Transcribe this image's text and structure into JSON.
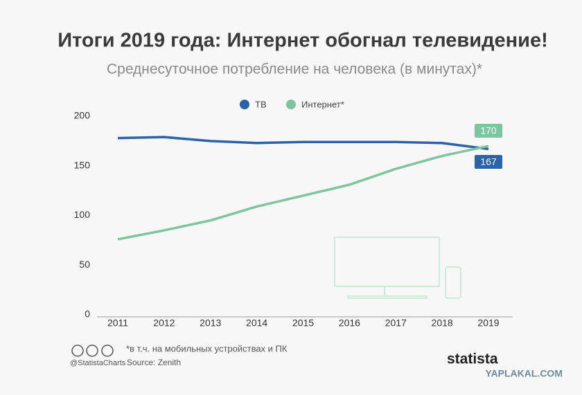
{
  "chart_data": {
    "type": "line",
    "title": "Итоги 2019 года: Интернет обогнал телевидение!",
    "subtitle": "Среднесуточное потребление на человека (в минутах)*",
    "categories": [
      "2011",
      "2012",
      "2013",
      "2014",
      "2015",
      "2016",
      "2017",
      "2018",
      "2019"
    ],
    "series": [
      {
        "name": "ТВ",
        "color": "#2a63a8",
        "values": [
          178,
          179,
          175,
          173,
          174,
          174,
          174,
          173,
          167
        ]
      },
      {
        "name": "Интернет*",
        "color": "#7cc5a0",
        "values": [
          76,
          85,
          95,
          109,
          120,
          131,
          147,
          160,
          170
        ]
      }
    ],
    "ylim": [
      0,
      200
    ],
    "yticks": [
      0,
      50,
      100,
      150,
      200
    ],
    "footnote": "*в т.ч. на мобильных устройствах и ПК",
    "handle": "@StatistaCharts",
    "source": "Source: Zenith",
    "brand": "statista",
    "watermark": "YAPLAKAL.COM"
  }
}
